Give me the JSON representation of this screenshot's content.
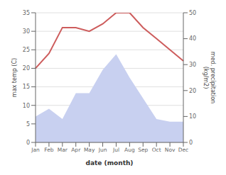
{
  "chart_data": {
    "type": "line",
    "categories": [
      "Jan",
      "Feb",
      "Mar",
      "Apr",
      "May",
      "Jun",
      "Jul",
      "Aug",
      "Sep",
      "Oct",
      "Nov",
      "Dec"
    ],
    "xlabel": "date (month)",
    "ylabel": "max temp (C)",
    "y2label": "med. precipitation\n(kg/m2)",
    "series": [
      {
        "type": "line",
        "color": "#cd5c5c",
        "values": [
          20,
          24,
          31,
          31,
          30,
          32,
          35,
          35,
          31,
          28,
          25,
          22
        ]
      },
      {
        "type": "area",
        "color": "#c8d0f0",
        "axis": "y2",
        "values": [
          10,
          13,
          9,
          19,
          19,
          28,
          34,
          25,
          17,
          9,
          8,
          8
        ]
      }
    ],
    "ylim": [
      0,
      35
    ],
    "yticks": [
      0,
      5,
      10,
      15,
      20,
      25,
      30,
      35
    ],
    "y2lim": [
      0,
      50
    ],
    "y2ticks": [
      0,
      10,
      20,
      30,
      40,
      50
    ],
    "grid": true
  }
}
